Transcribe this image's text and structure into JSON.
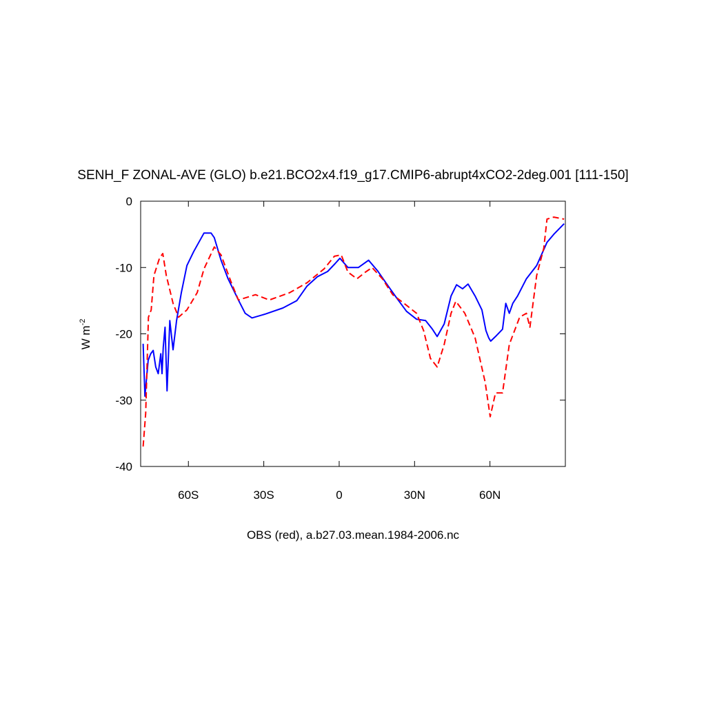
{
  "chart_data": {
    "type": "line",
    "title": "SENH_F ZONAL-AVE (GLO) b.e21.BCO2x4.f19_g17.CMIP6-abrupt4xCO2-2deg.001 [111-150]",
    "ylabel": {
      "text": "W m",
      "superscript": "-2"
    },
    "xlabel": "OBS (red), a.b27.03.mean.1984-2006.nc",
    "xlim": [
      -79,
      90
    ],
    "ylim": [
      -40,
      0
    ],
    "xticks": [
      {
        "value": -60,
        "label": "60S"
      },
      {
        "value": -30,
        "label": "30S"
      },
      0,
      {
        "value": 30,
        "label": "30N"
      },
      {
        "value": 60,
        "label": "60N"
      }
    ],
    "yticks": [
      0,
      -10,
      -20,
      -30,
      -40
    ],
    "series": [
      {
        "color": "#0000ff",
        "dash": false,
        "x": [
          -78,
          -77.3,
          -76,
          -75,
          -74,
          -73,
          -72,
          -71,
          -70.5,
          -70,
          -69.3,
          -68.5,
          -67.4,
          -66.1,
          -64.7,
          -62.8,
          -60.6,
          -57.9,
          -53.8,
          -51,
          -49.7,
          -47,
          -44.2,
          -40.1,
          -37.4,
          -34.7,
          -29.2,
          -22.4,
          -16.9,
          -12.8,
          -8.7,
          -4.6,
          -1.6,
          0.3,
          3.5,
          7.6,
          11.7,
          15.3,
          18.6,
          22.7,
          26.8,
          30.8,
          34.4,
          37.1,
          39,
          41.8,
          44.5,
          46.7,
          49.1,
          51.3,
          54.1,
          56.8,
          58.4,
          59.5,
          60.3,
          62.2,
          65,
          66.3,
          67.7,
          69.1,
          71,
          74.5,
          78.6,
          82.7,
          85.4,
          89.5
        ],
        "values": [
          -21.5,
          -29.4,
          -24,
          -23,
          -22.5,
          -25,
          -26,
          -23,
          -26,
          -22,
          -19,
          -28.6,
          -18,
          -22.4,
          -18,
          -13.8,
          -9.7,
          -7.6,
          -4.8,
          -4.8,
          -5.5,
          -8.9,
          -11.7,
          -14.9,
          -16.9,
          -17.6,
          -17,
          -16.1,
          -15,
          -12.8,
          -11.4,
          -10.6,
          -9.4,
          -8.6,
          -10,
          -10,
          -8.9,
          -10.5,
          -12.3,
          -14.5,
          -16.6,
          -17.8,
          -18,
          -19.3,
          -20.4,
          -18.5,
          -14.3,
          -12.6,
          -13.2,
          -12.5,
          -14.3,
          -16.4,
          -19.5,
          -20.6,
          -21.1,
          -20.4,
          -19.3,
          -15.4,
          -16.9,
          -15.4,
          -14.3,
          -11.7,
          -9.7,
          -6.2,
          -5,
          -3.4
        ]
      },
      {
        "color": "#ff0000",
        "dash": true,
        "x": [
          -78,
          -77,
          -75.9,
          -74.8,
          -73.7,
          -71.5,
          -70.2,
          -68.8,
          -66.1,
          -63.9,
          -60.6,
          -56.5,
          -53.8,
          -49.7,
          -47,
          -42.9,
          -40.1,
          -33.3,
          -27.8,
          -19.7,
          -12.8,
          -6,
          -1.9,
          0.8,
          3.5,
          7.1,
          10.4,
          13.1,
          17.2,
          21.3,
          26.8,
          30.8,
          33.6,
          36.3,
          39,
          41.8,
          44.5,
          46.4,
          50,
          54.1,
          58.1,
          60.1,
          62.2,
          65,
          67.7,
          71.8,
          74.5,
          75.9,
          78.6,
          81.4,
          82.7,
          85.4,
          89.5
        ],
        "values": [
          -37,
          -32,
          -17.5,
          -16.4,
          -11.2,
          -8.6,
          -7.9,
          -11.2,
          -15.4,
          -17.5,
          -16.4,
          -13.8,
          -10.2,
          -6.9,
          -8.1,
          -12.3,
          -14.9,
          -14.1,
          -14.9,
          -13.8,
          -12.3,
          -10.2,
          -8.3,
          -8.1,
          -10.7,
          -11.7,
          -10.7,
          -10,
          -11.7,
          -14.1,
          -15.7,
          -16.9,
          -19.5,
          -23.7,
          -25,
          -21.6,
          -16.9,
          -15.1,
          -16.9,
          -20.6,
          -27.3,
          -32.5,
          -28.9,
          -28.9,
          -21.6,
          -17.5,
          -16.9,
          -19,
          -11.2,
          -7.1,
          -2.7,
          -2.4,
          -2.7
        ]
      }
    ]
  }
}
